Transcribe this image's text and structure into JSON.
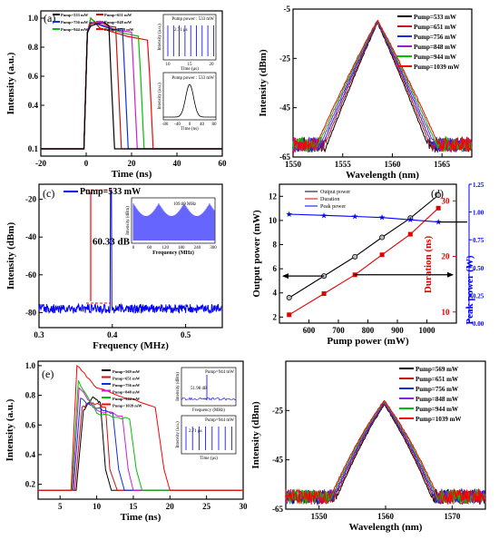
{
  "chart_data": [
    {
      "id": "a",
      "panel_label": "(a)",
      "type": "line",
      "xlabel": "Time (ns)",
      "ylabel": "Intensity (a.u.)",
      "xlim": [
        -20,
        60
      ],
      "ylim": [
        0.05,
        1.05
      ],
      "xticks": [
        -20,
        0,
        20,
        40,
        60
      ],
      "yticks": [
        0.1,
        0.4,
        0.6,
        0.8,
        1.0
      ],
      "yticklabels": [
        "0.1",
        "0.4",
        "0.6",
        "0.8",
        "1.0"
      ],
      "legend": "top-left",
      "series": [
        {
          "name": "Pump=533 mW",
          "color": "#000000",
          "x": [
            -20,
            -1,
            0.5,
            2,
            5,
            8,
            10,
            11,
            12.5,
            60
          ],
          "y": [
            0.1,
            0.1,
            0.9,
            0.95,
            0.97,
            0.96,
            0.95,
            0.6,
            0.1,
            0.1
          ]
        },
        {
          "name": "Pump=651 mW",
          "color": "#d01010",
          "x": [
            -20,
            -1,
            0.5,
            2,
            6,
            10,
            13,
            14,
            15.5,
            60
          ],
          "y": [
            0.1,
            0.1,
            0.9,
            0.96,
            0.97,
            0.95,
            0.94,
            0.6,
            0.1,
            0.1
          ]
        },
        {
          "name": "Pump=756 mW",
          "color": "#1030e0",
          "x": [
            -20,
            -1,
            0.5,
            2,
            6,
            12,
            16,
            17,
            18.5,
            60
          ],
          "y": [
            0.1,
            0.1,
            0.9,
            0.97,
            0.96,
            0.93,
            0.92,
            0.6,
            0.1,
            0.1
          ]
        },
        {
          "name": "Pump=848 mW",
          "color": "#d020d0",
          "x": [
            -20,
            -1,
            0.5,
            2,
            6,
            14,
            20,
            21,
            22.5,
            60
          ],
          "y": [
            0.1,
            0.1,
            0.9,
            0.98,
            0.96,
            0.92,
            0.9,
            0.6,
            0.1,
            0.1
          ]
        },
        {
          "name": "Pump=944 mW",
          "color": "#00c000",
          "x": [
            -20,
            -1,
            0.5,
            2,
            6,
            16,
            23,
            24,
            25.5,
            60
          ],
          "y": [
            0.1,
            0.1,
            0.9,
            0.99,
            0.95,
            0.9,
            0.88,
            0.6,
            0.1,
            0.1
          ]
        },
        {
          "name": "Pump=1039 mW",
          "color": "#ff0000",
          "x": [
            -20,
            -1,
            0.5,
            2,
            6,
            18,
            27,
            28,
            29.5,
            60
          ],
          "y": [
            0.1,
            0.1,
            0.9,
            1.0,
            0.94,
            0.88,
            0.85,
            0.6,
            0.1,
            0.1
          ]
        }
      ],
      "insets": [
        {
          "legend": "Pump power : 533 mW",
          "xlabel": "Time (μs)",
          "ylabel": "Intensity (a.u.)",
          "xticks": [
            10,
            15,
            20
          ],
          "annotation": "2.71 μs"
        },
        {
          "legend": "Pump power : 533 mW",
          "xlabel": "Time (ns)",
          "ylabel": "Intensity (a.u.)",
          "xticks": [
            -80,
            -40,
            0,
            40,
            80
          ]
        }
      ]
    },
    {
      "id": "b",
      "panel_label": "(b)",
      "type": "line",
      "xlabel": "Wavelength (nm)",
      "ylabel": "Intensity (dBm)",
      "xlim": [
        1550,
        1568
      ],
      "ylim": [
        -65,
        -5
      ],
      "xticks": [
        1550,
        1555,
        1560,
        1565
      ],
      "yticks": [
        -65,
        -45,
        -25,
        -5
      ],
      "legend": "top-right",
      "series": [
        {
          "name": "Pump=533 mW",
          "color": "#000000",
          "peak": 1558.5,
          "width": 4.2,
          "top": -10.5
        },
        {
          "name": "Pump=651 mW",
          "color": "#d01010",
          "peak": 1558.5,
          "width": 4.4,
          "top": -10.3
        },
        {
          "name": "Pump=756 mW",
          "color": "#1030e0",
          "peak": 1558.5,
          "width": 4.6,
          "top": -10.1
        },
        {
          "name": "Pump=848 mW",
          "color": "#9020d0",
          "peak": 1558.5,
          "width": 4.8,
          "top": -9.9
        },
        {
          "name": "Pump=944 mW",
          "color": "#00c000",
          "peak": 1558.5,
          "width": 5.0,
          "top": -9.7
        },
        {
          "name": "Pump=1039 mW",
          "color": "#ff0000",
          "peak": 1558.5,
          "width": 5.2,
          "top": -9.5
        }
      ]
    },
    {
      "id": "c",
      "panel_label": "(c)",
      "type": "line",
      "xlabel": "Frequency (MHz)",
      "ylabel": "Intensity (dBm)",
      "xlim": [
        0.3,
        0.55
      ],
      "ylim": [
        -88,
        -12
      ],
      "xticks": [
        0.3,
        0.4,
        0.5
      ],
      "yticks": [
        -80,
        -60,
        -40,
        -20
      ],
      "legend": "top-left",
      "annotation": "60.33 dB",
      "series": [
        {
          "name": "Pump=533 mW",
          "color": "#0000ff",
          "peak_x": 0.398,
          "peak_y": -15,
          "floor": -78
        }
      ],
      "inset": {
        "xlabel": "Frequency (MHz)",
        "ylabel": "Intensity (dBm)",
        "xticks": [
          0,
          60,
          120,
          180,
          240,
          300
        ],
        "annotation": "109.69 MHz"
      }
    },
    {
      "id": "d",
      "panel_label": "(d)",
      "type": "line",
      "xlabel": "Pump power (mW)",
      "ylabel": "Output power (mW)",
      "ylabel_right1": "Duration (ns)",
      "ylabel_right2": "Peak power (W)",
      "xlim": [
        500,
        1100
      ],
      "ylim": [
        1.5,
        13
      ],
      "xticks": [
        600,
        700,
        800,
        900,
        1000
      ],
      "yticks": [
        2,
        4,
        6,
        8,
        10,
        12
      ],
      "y2lim": [
        8,
        33
      ],
      "y2ticks": [
        10,
        20,
        30
      ],
      "y3lim": [
        0,
        1.25
      ],
      "y3ticks": [
        0.0,
        0.25,
        0.5,
        0.75,
        1.0,
        1.25
      ],
      "y3ticklabels": [
        "0.00",
        "0.25",
        "0.50",
        "0.75",
        "1.00",
        "1.25"
      ],
      "legend": "top-left",
      "x": [
        533,
        651,
        756,
        848,
        944,
        1039
      ],
      "series": [
        {
          "name": "Output power",
          "color": "#000000",
          "axis": "left",
          "values": [
            3.6,
            5.4,
            7.0,
            8.6,
            10.2,
            12.1
          ]
        },
        {
          "name": "Duration",
          "color": "#e00000",
          "axis": "right1",
          "values": [
            9.5,
            13.3,
            16.7,
            20.3,
            24.0,
            28.7
          ]
        },
        {
          "name": "Peak power",
          "color": "#0000ff",
          "axis": "right2",
          "values": [
            0.98,
            0.97,
            0.96,
            0.95,
            0.93,
            0.91
          ]
        }
      ]
    },
    {
      "id": "e",
      "panel_label": "(e)",
      "type": "line",
      "xlabel": "Time (ns)",
      "ylabel": "Intensity (a.u.)",
      "xlim": [
        2,
        30
      ],
      "ylim": [
        0.1,
        1.03
      ],
      "xticks": [
        5,
        10,
        15,
        20,
        25,
        30
      ],
      "yticks": [
        0.2,
        0.4,
        0.6,
        0.8,
        1.0
      ],
      "yticklabels": [
        "0.2",
        "0.4",
        "0.6",
        "0.8",
        "1.0"
      ],
      "legend": "top-center",
      "series": [
        {
          "name": "Pump=569 mW",
          "color": "#000000",
          "x": [
            2,
            7.2,
            8.2,
            9.5,
            10.5,
            11.2,
            12,
            30
          ],
          "y": [
            0.16,
            0.16,
            0.7,
            0.79,
            0.75,
            0.3,
            0.16,
            0.16
          ]
        },
        {
          "name": "Pump=651 mW",
          "color": "#d01010",
          "x": [
            2,
            7.0,
            8.0,
            9.5,
            11.2,
            11.8,
            12.8,
            30
          ],
          "y": [
            0.16,
            0.16,
            0.72,
            0.75,
            0.72,
            0.3,
            0.16,
            0.16
          ]
        },
        {
          "name": "Pump=756 mW",
          "color": "#1030e0",
          "x": [
            2,
            6.8,
            7.8,
            9.5,
            12.2,
            13,
            13.8,
            30
          ],
          "y": [
            0.16,
            0.16,
            0.78,
            0.72,
            0.68,
            0.3,
            0.16,
            0.16
          ]
        },
        {
          "name": "Pump=848 mW",
          "color": "#d020d0",
          "x": [
            2,
            6.7,
            7.6,
            10,
            13.5,
            14.3,
            15,
            30
          ],
          "y": [
            0.16,
            0.16,
            0.85,
            0.7,
            0.66,
            0.3,
            0.16,
            0.16
          ]
        },
        {
          "name": "Pump=944 mW",
          "color": "#00c000",
          "x": [
            2,
            6.6,
            7.5,
            10,
            14.5,
            15.4,
            16.2,
            30
          ],
          "y": [
            0.16,
            0.16,
            0.9,
            0.68,
            0.64,
            0.3,
            0.16,
            0.16
          ]
        },
        {
          "name": "Pump=1039 mW",
          "color": "#ff0000",
          "x": [
            2,
            6.5,
            7.3,
            10,
            18,
            19.2,
            20,
            30
          ],
          "y": [
            0.16,
            0.16,
            1.0,
            0.85,
            0.72,
            0.3,
            0.16,
            0.16
          ]
        }
      ],
      "insets": [
        {
          "legend": "Pump=944 mW",
          "xlabel": "Frequency (MHz)",
          "ylabel": "Intensity (dBm)",
          "annotation": "51.98 dB"
        },
        {
          "legend": "Pump=944 mW",
          "xlabel": "Time (μs)",
          "ylabel": "Intensity (a.u.)",
          "annotation": "2.71 μs"
        }
      ]
    },
    {
      "id": "f",
      "panel_label": "(f)",
      "type": "line",
      "xlabel": "Wavelength (nm)",
      "ylabel": "Intensity (dBm)",
      "xlim": [
        1545,
        1575
      ],
      "ylim": [
        -65,
        -5
      ],
      "xticks": [
        1550,
        1560,
        1570
      ],
      "yticks": [
        -65,
        -45,
        -25
      ],
      "legend": "top-right",
      "series": [
        {
          "name": "Pump=569 mW",
          "color": "#000000",
          "peak": 1559.8,
          "width": 9.0,
          "top": -22.5
        },
        {
          "name": "Pump=651 mW",
          "color": "#d01010",
          "peak": 1559.8,
          "width": 9.3,
          "top": -22.2
        },
        {
          "name": "Pump=756 mW",
          "color": "#1030e0",
          "peak": 1559.8,
          "width": 9.6,
          "top": -21.9
        },
        {
          "name": "Pump=848 mW",
          "color": "#9020d0",
          "peak": 1559.8,
          "width": 9.9,
          "top": -21.6
        },
        {
          "name": "Pump=944 mW",
          "color": "#00c000",
          "peak": 1559.8,
          "width": 10.2,
          "top": -21.3
        },
        {
          "name": "Pump=1039 mW",
          "color": "#ff0000",
          "peak": 1559.8,
          "width": 10.5,
          "top": -21.0
        }
      ]
    }
  ]
}
